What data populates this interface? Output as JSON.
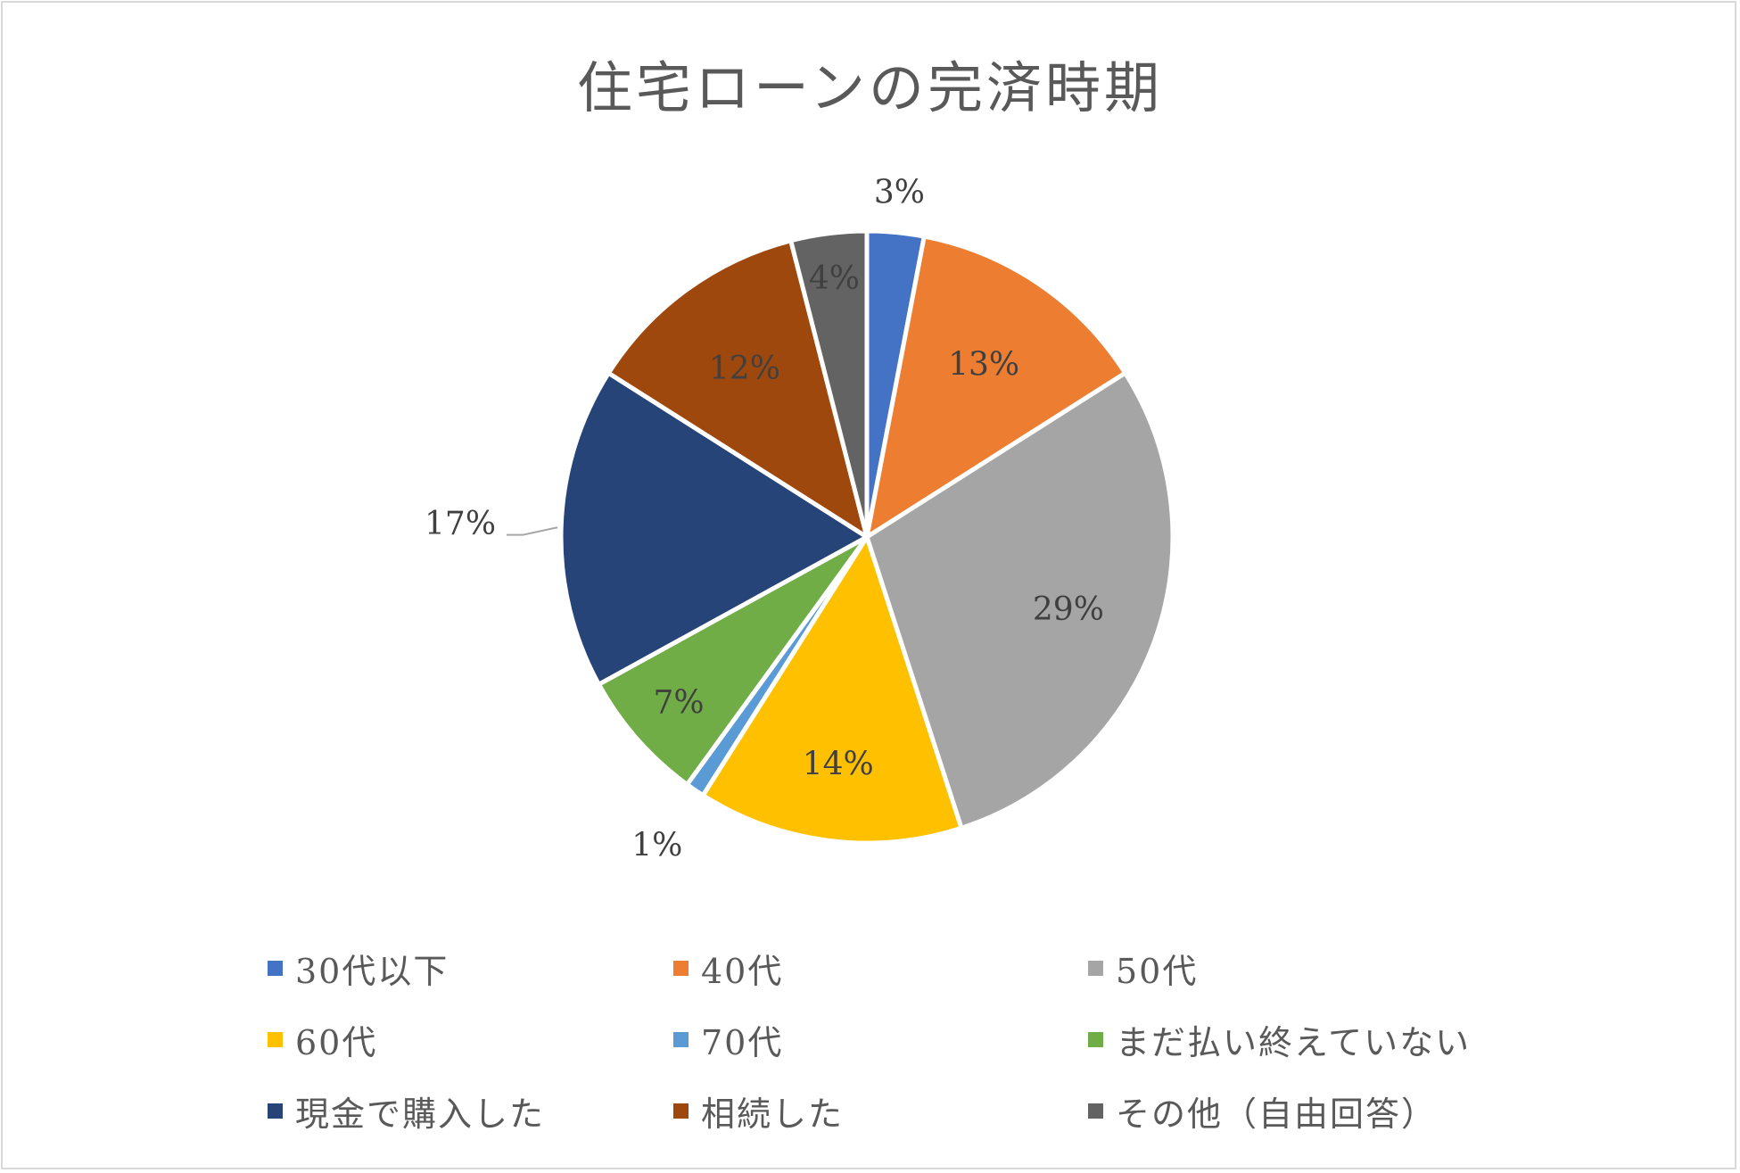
{
  "chart_data": {
    "type": "pie",
    "title": "住宅ローンの完済時期",
    "series": [
      {
        "name": "30代以下",
        "value": 3,
        "label": "3%",
        "color": "#4472C4"
      },
      {
        "name": "40代",
        "value": 13,
        "label": "13%",
        "color": "#ED7D31"
      },
      {
        "name": "50代",
        "value": 29,
        "label": "29%",
        "color": "#A5A5A5"
      },
      {
        "name": "60代",
        "value": 14,
        "label": "14%",
        "color": "#FFC000"
      },
      {
        "name": "70代",
        "value": 1,
        "label": "1%",
        "color": "#5B9BD5"
      },
      {
        "name": "まだ払い終えていない",
        "value": 7,
        "label": "7%",
        "color": "#70AD47"
      },
      {
        "name": "現金で購入した",
        "value": 17,
        "label": "17%",
        "color": "#264478"
      },
      {
        "name": "相続した",
        "value": 12,
        "label": "12%",
        "color": "#9E480E"
      },
      {
        "name": "その他（自由回答）",
        "value": 4,
        "label": "4%",
        "color": "#636363"
      }
    ],
    "legend_position": "bottom",
    "start_angle": "12 o'clock, clockwise"
  }
}
